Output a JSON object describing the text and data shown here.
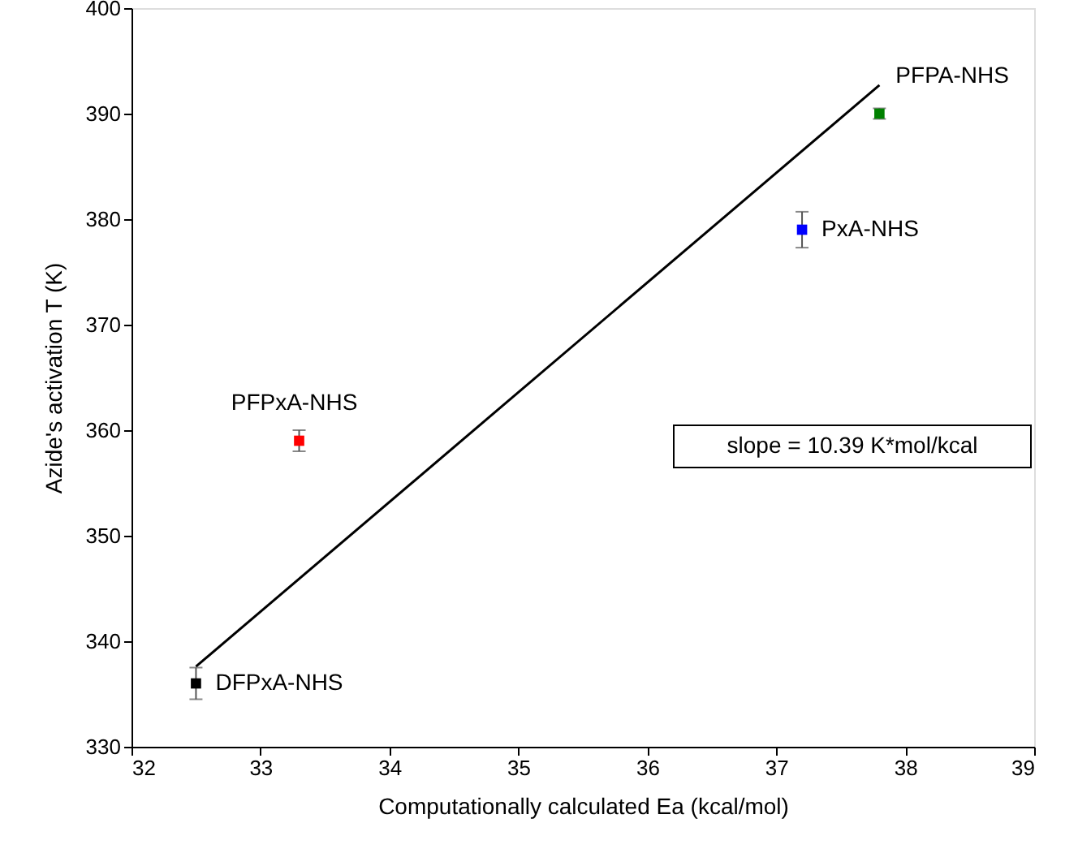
{
  "chart_data": {
    "type": "scatter",
    "xlabel": "Computationally calculated Ea (kcal/mol)",
    "ylabel": "Azide's activation T (K)",
    "xlim": [
      32,
      39
    ],
    "xticks": [
      32,
      33,
      34,
      35,
      36,
      37,
      38,
      39
    ],
    "ylim": [
      330,
      400
    ],
    "yticks": [
      330,
      340,
      350,
      360,
      370,
      380,
      390,
      400
    ],
    "grid": false,
    "marker": "square",
    "annotations": [
      "slope = 10.39 K*mol/kcal"
    ],
    "series": [
      {
        "name": "DFPxA-NHS",
        "color": "#000000",
        "x": [
          32.5
        ],
        "values": [
          336
        ],
        "errors": [
          1.5
        ]
      },
      {
        "name": "PFPxA-NHS",
        "color": "#ff0000",
        "x": [
          33.3
        ],
        "values": [
          359
        ],
        "errors": [
          1
        ]
      },
      {
        "name": "PxA-NHS",
        "color": "#0000ff",
        "x": [
          37.2
        ],
        "values": [
          379
        ],
        "errors": [
          1.7
        ]
      },
      {
        "name": "PFPA-NHS",
        "color": "#008000",
        "x": [
          37.8
        ],
        "values": [
          390
        ],
        "errors": [
          0.5
        ]
      },
      {
        "type": "line",
        "color": "#000000",
        "line_style": "solid",
        "marker": "none",
        "x": [
          32.5,
          37.8
        ],
        "values": [
          337.6,
          392.7
        ]
      }
    ]
  }
}
